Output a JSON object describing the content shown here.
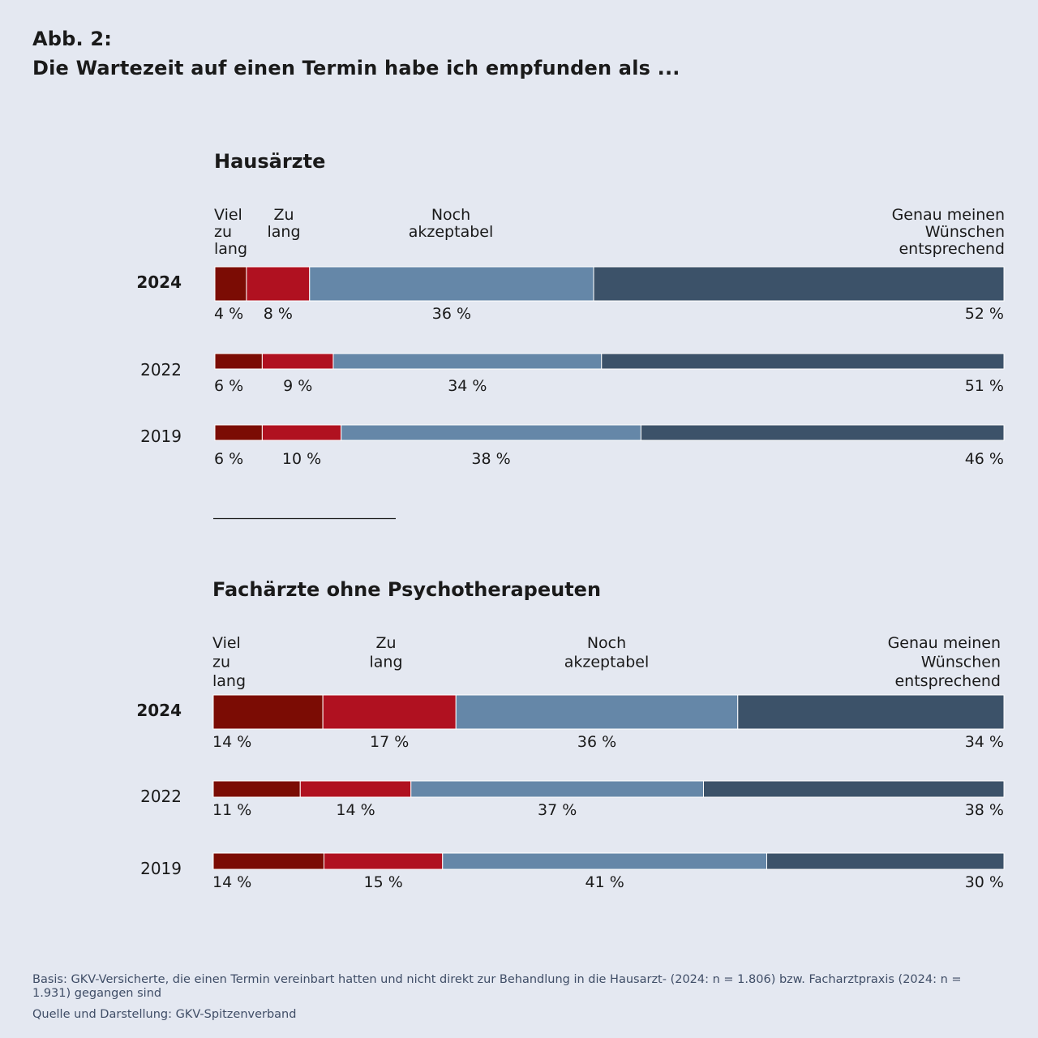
{
  "figure": {
    "label": "Abb. 2:",
    "title": "Die Wartezeit auf einen Termin habe ich empfunden als ..."
  },
  "colors": {
    "background": "#e4e8f1",
    "viel_zu_lang": "#7b0c04",
    "zu_lang": "#b01120",
    "noch_akzeptabel": "#6587a8",
    "genau": "#3c5269",
    "text": "#1a1a1a"
  },
  "chart_data": [
    {
      "type": "bar",
      "orientation": "horizontal",
      "stacked": true,
      "unit": "%",
      "title": "Hausärzte",
      "categories": [
        "2024",
        "2022",
        "2019"
      ],
      "highlight_category": "2024",
      "legend": [
        {
          "lines": [
            "Viel",
            "zu",
            "lang"
          ]
        },
        {
          "lines": [
            "Zu",
            "lang"
          ]
        },
        {
          "lines": [
            "Noch",
            "akzeptabel"
          ]
        },
        {
          "lines": [
            "Genau meinen",
            "Wünschen",
            "entsprechend"
          ]
        }
      ],
      "series": [
        {
          "name": "Viel zu lang",
          "values": [
            4,
            6,
            6
          ]
        },
        {
          "name": "Zu lang",
          "values": [
            8,
            9,
            10
          ]
        },
        {
          "name": "Noch akzeptabel",
          "values": [
            36,
            34,
            38
          ]
        },
        {
          "name": "Genau meinen Wünschen entsprechend",
          "values": [
            52,
            51,
            46
          ]
        }
      ]
    },
    {
      "type": "bar",
      "orientation": "horizontal",
      "stacked": true,
      "unit": "%",
      "title": "Fachärzte ohne Psychotherapeuten",
      "categories": [
        "2024",
        "2022",
        "2019"
      ],
      "highlight_category": "2024",
      "legend": [
        {
          "lines": [
            "Viel",
            "zu",
            "lang"
          ]
        },
        {
          "lines": [
            "Zu",
            "lang"
          ]
        },
        {
          "lines": [
            "Noch",
            "akzeptabel"
          ]
        },
        {
          "lines": [
            "Genau meinen",
            "Wünschen",
            "entsprechend"
          ]
        }
      ],
      "series": [
        {
          "name": "Viel zu lang",
          "values": [
            14,
            11,
            14
          ]
        },
        {
          "name": "Zu lang",
          "values": [
            17,
            14,
            15
          ]
        },
        {
          "name": "Noch akzeptabel",
          "values": [
            36,
            37,
            41
          ]
        },
        {
          "name": "Genau meinen Wünschen entsprechend",
          "values": [
            34,
            38,
            30
          ]
        }
      ]
    }
  ],
  "footnotes": {
    "basis": "Basis: GKV-Versicherte, die einen Termin vereinbart hatten und nicht direkt zur Behandlung in die Hausarzt- (2024: n = 1.806) bzw. Facharztpraxis (2024: n = 1.931) gegangen sind",
    "source": "Quelle und Darstellung: GKV-Spitzenverband"
  }
}
